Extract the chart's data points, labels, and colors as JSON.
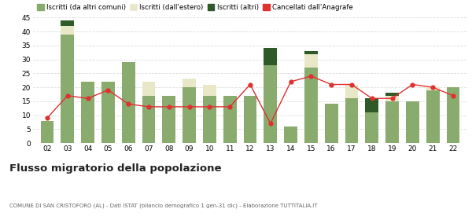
{
  "years": [
    "02",
    "03",
    "04",
    "05",
    "06",
    "07",
    "08",
    "09",
    "10",
    "11",
    "12",
    "13",
    "14",
    "15",
    "16",
    "17",
    "18",
    "19",
    "20",
    "21",
    "22"
  ],
  "iscritti_comuni": [
    8,
    39,
    22,
    22,
    29,
    17,
    17,
    20,
    17,
    17,
    17,
    28,
    6,
    27,
    14,
    16,
    11,
    15,
    15,
    19,
    20
  ],
  "iscritti_estero": [
    0,
    3,
    0,
    0,
    0,
    5,
    0,
    3,
    4,
    0,
    0,
    0,
    0,
    5,
    0,
    5,
    0,
    2,
    0,
    1,
    0
  ],
  "iscritti_altri": [
    0,
    2,
    0,
    0,
    0,
    0,
    0,
    0,
    0,
    0,
    0,
    6,
    0,
    1,
    0,
    0,
    5,
    1,
    0,
    0,
    0
  ],
  "cancellati": [
    9,
    17,
    16,
    19,
    14,
    13,
    13,
    13,
    13,
    13,
    21,
    7,
    22,
    24,
    21,
    21,
    16,
    16,
    21,
    20,
    17
  ],
  "color_comuni": "#8aab6e",
  "color_estero": "#e8e8c8",
  "color_altri": "#2d5a27",
  "color_cancellati": "#e03030",
  "ylim": [
    0,
    45
  ],
  "yticks": [
    0,
    5,
    10,
    15,
    20,
    25,
    30,
    35,
    40,
    45
  ],
  "title": "Flusso migratorio della popolazione",
  "subtitle": "COMUNE DI SAN CRISTOFORO (AL) - Dati ISTAT (bilancio demografico 1 gen-31 dic) - Elaborazione TUTTITALIA.IT",
  "legend_labels": [
    "Iscritti (da altri comuni)",
    "Iscritti (dall'estero)",
    "Iscritti (altri)",
    "Cancellati dall'Anagrafe"
  ],
  "bg_color": "#ffffff",
  "grid_color": "#dddddd"
}
